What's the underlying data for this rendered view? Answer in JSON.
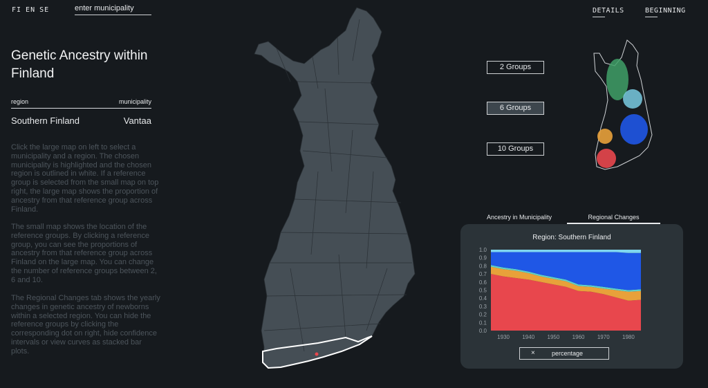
{
  "language": {
    "options": [
      "FI",
      "EN",
      "SE"
    ]
  },
  "search": {
    "placeholder": "enter municipality"
  },
  "nav": {
    "details": "DETAILS",
    "beginning": "BEGINNING"
  },
  "sidebar": {
    "title": "Genetic Ancestry within Finland",
    "region_header": "region",
    "municipality_header": "municipality",
    "region_value": "Southern Finland",
    "municipality_value": "Vantaa",
    "paragraphs": [
      "Click the large map on left to select a municipality and a region. The chosen municipality is highlighted and the chosen region is outlined in white. If a reference group is selected from the small map on top right, the large map shows the proportion of ancestry from that reference group across Finland.",
      "The small map shows the location of the reference groups. By clicking a reference group, you can see the proportions of ancestry from that reference group across Finland on the large map. You can change the number of reference groups between 2, 6 and 10.",
      "The Regional Changes tab shows the yearly changes in genetic ancestry of newborns within a selected region. You can hide the reference groups by clicking the corresponding dot on right, hide confidence intervals or view curves as stacked bar plots."
    ]
  },
  "groups": {
    "buttons": [
      "2 Groups",
      "6 Groups",
      "10 Groups"
    ],
    "selected": "6 Groups"
  },
  "tabs": {
    "ancestry": "Ancestry in Municipality",
    "regional": "Regional Changes",
    "active": "Regional Changes"
  },
  "percentage_toggle": {
    "icon": "×",
    "label": "percentage"
  },
  "colors": {
    "background": "#161a1e",
    "map_fill": "#454e55",
    "panel": "#2b3338",
    "red": "#e8474d",
    "orange": "#e8a13a",
    "teal": "#5fd0c9",
    "blue": "#1f57e6",
    "light_blue": "#7fd6ee",
    "green": "#3fa067"
  },
  "chart_data": {
    "type": "area",
    "stacked": true,
    "title": "Region: Southern Finland",
    "x": [
      1925,
      1930,
      1935,
      1940,
      1945,
      1950,
      1955,
      1960,
      1965,
      1970,
      1975,
      1980,
      1985
    ],
    "x_ticks": [
      "1930",
      "1940",
      "1950",
      "1960",
      "1970",
      "1980"
    ],
    "ylim": [
      0,
      1.0
    ],
    "y_ticks": [
      "0.0",
      "0.1",
      "0.2",
      "0.3",
      "0.4",
      "0.5",
      "0.6",
      "0.7",
      "0.8",
      "0.9",
      "1.0"
    ],
    "grid": false,
    "series": [
      {
        "color": "#e8474d",
        "values": [
          0.7,
          0.67,
          0.65,
          0.63,
          0.6,
          0.57,
          0.54,
          0.49,
          0.48,
          0.45,
          0.41,
          0.37,
          0.38
        ]
      },
      {
        "color": "#e8a13a",
        "values": [
          0.09,
          0.09,
          0.09,
          0.08,
          0.07,
          0.07,
          0.07,
          0.06,
          0.06,
          0.07,
          0.09,
          0.11,
          0.11
        ]
      },
      {
        "color": "#5fd0c9",
        "values": [
          0.02,
          0.02,
          0.02,
          0.02,
          0.02,
          0.02,
          0.02,
          0.02,
          0.02,
          0.02,
          0.02,
          0.02,
          0.02
        ]
      },
      {
        "color": "#1f57e6",
        "values": [
          0.16,
          0.19,
          0.21,
          0.24,
          0.28,
          0.31,
          0.34,
          0.4,
          0.41,
          0.43,
          0.45,
          0.46,
          0.45
        ]
      },
      {
        "color": "#7fd6ee",
        "values": [
          0.03,
          0.03,
          0.03,
          0.03,
          0.03,
          0.03,
          0.03,
          0.03,
          0.03,
          0.03,
          0.03,
          0.04,
          0.04
        ]
      }
    ]
  }
}
